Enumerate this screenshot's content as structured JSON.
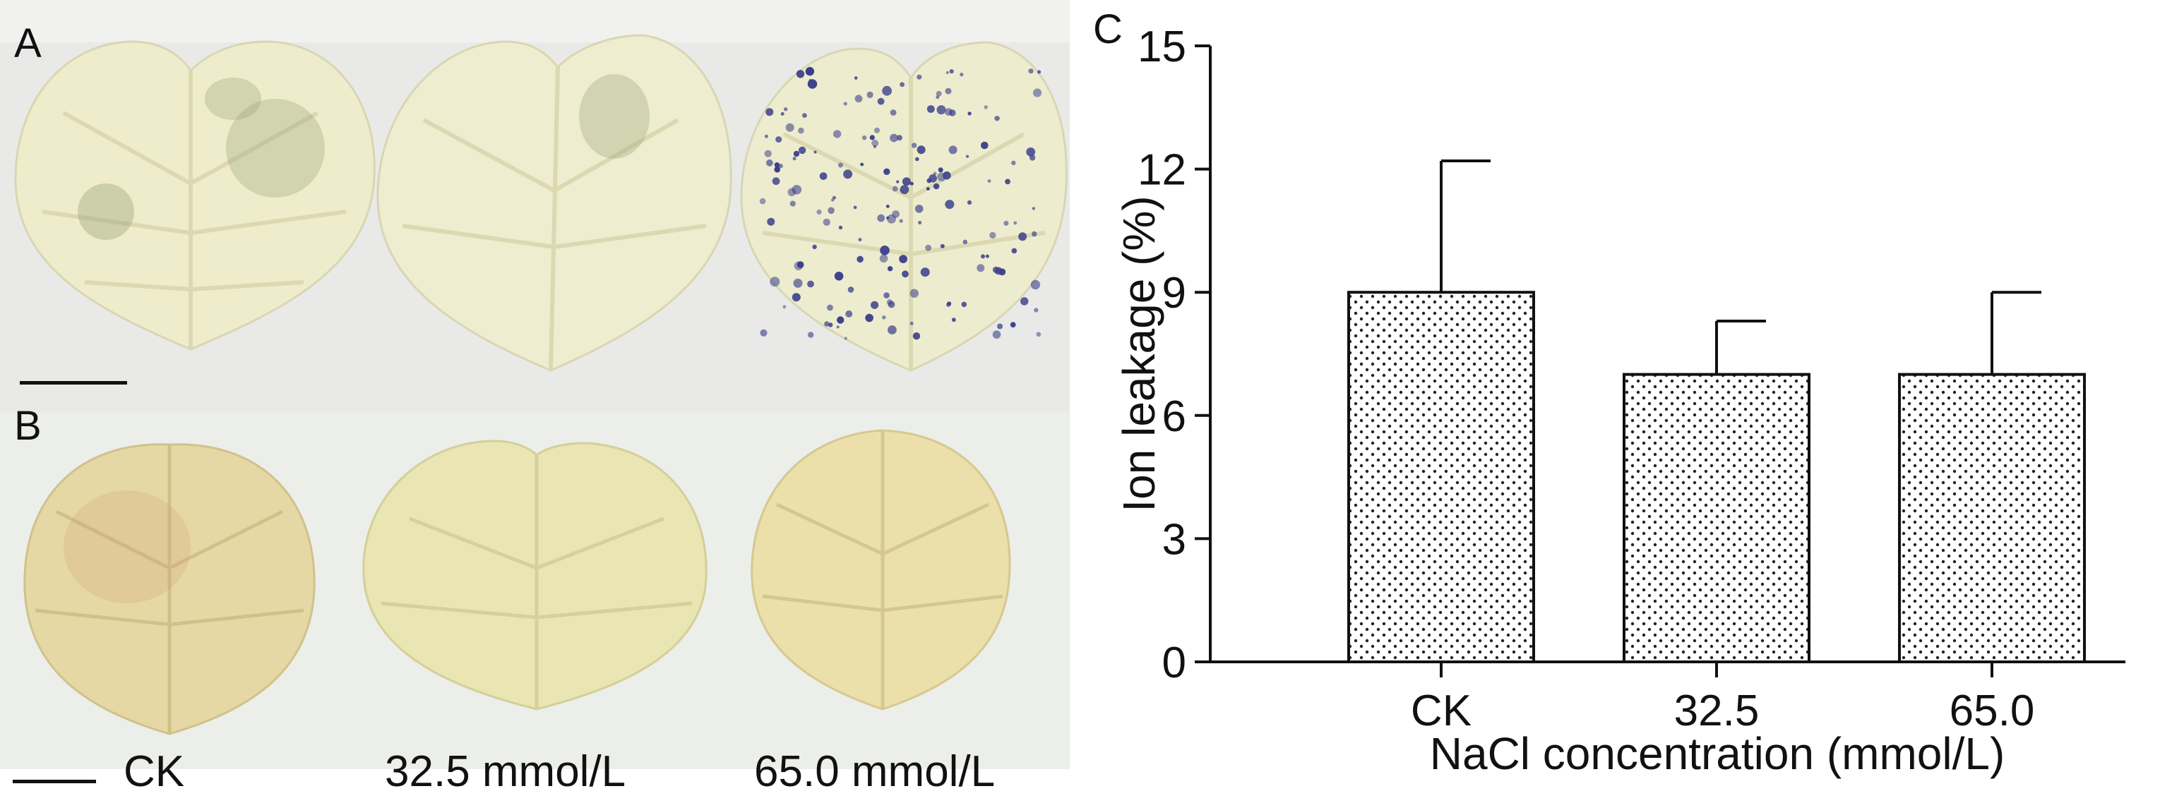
{
  "panels": {
    "A": {
      "letter": "A"
    },
    "B": {
      "letter": "B",
      "labels": [
        "CK",
        "32.5 mmol/L",
        "65.0 mmol/L"
      ]
    },
    "C": {
      "letter": "C"
    }
  },
  "colors": {
    "photo_bg": "#e8e9e7",
    "leaf_a": "#efeccc",
    "leaf_b": "#e6d9a8",
    "stain_green": "#8e9c6e",
    "stain_blue": "#3a3f8a",
    "stain_red": "#c48a70",
    "bar_fill": "#ffffff",
    "bar_stroke": "#111111"
  },
  "chart_data": {
    "type": "bar",
    "categories": [
      "CK",
      "32.5",
      "65.0"
    ],
    "values": [
      9.0,
      7.0,
      7.0
    ],
    "error": [
      3.2,
      1.3,
      2.0
    ],
    "title": "",
    "xlabel": "NaCl concentration (mmol/L)",
    "ylabel": "Ion leakage (%)",
    "ylim": [
      0,
      15
    ],
    "yticks": [
      0,
      3,
      6,
      9,
      12,
      15
    ],
    "pattern": "dotted",
    "grid": false
  }
}
